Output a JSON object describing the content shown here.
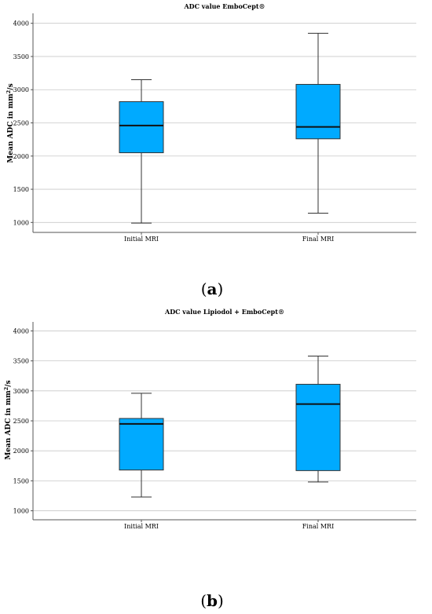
{
  "chart_data": [
    {
      "type": "box",
      "title": "ADC value EmboCept®",
      "ylabel_main": "Mean ADC in mm",
      "ylabel_sup": "2",
      "ylabel_tail": "/s",
      "ylim": [
        850,
        4150
      ],
      "yticks": [
        1000,
        1500,
        2000,
        2500,
        3000,
        3500,
        4000
      ],
      "grid": true,
      "box_color": "#00aaff",
      "categories": [
        "Initial MRI",
        "Final MRI"
      ],
      "boxes": [
        {
          "min": 990,
          "q1": 2050,
          "median": 2460,
          "q3": 2820,
          "max": 3150
        },
        {
          "min": 1140,
          "q1": 2260,
          "median": 2440,
          "q3": 3080,
          "max": 3850
        }
      ],
      "panel_label_open": "(",
      "panel_label_letter": "a",
      "panel_label_close": ")"
    },
    {
      "type": "box",
      "title": "ADC value Lipiodol + EmboCept®",
      "ylabel_main": "Mean ADC in mm",
      "ylabel_sup": "2",
      "ylabel_tail": "/s",
      "ylim": [
        850,
        4150
      ],
      "yticks": [
        1000,
        1500,
        2000,
        2500,
        3000,
        3500,
        4000
      ],
      "grid": true,
      "box_color": "#00aaff",
      "categories": [
        "Initial MRI",
        "Final MRI"
      ],
      "boxes": [
        {
          "min": 1230,
          "q1": 1680,
          "median": 2450,
          "q3": 2540,
          "max": 2960
        },
        {
          "min": 1480,
          "q1": 1670,
          "median": 2780,
          "q3": 3110,
          "max": 3580
        }
      ],
      "panel_label_open": "(",
      "panel_label_letter": "b",
      "panel_label_close": ")"
    }
  ]
}
